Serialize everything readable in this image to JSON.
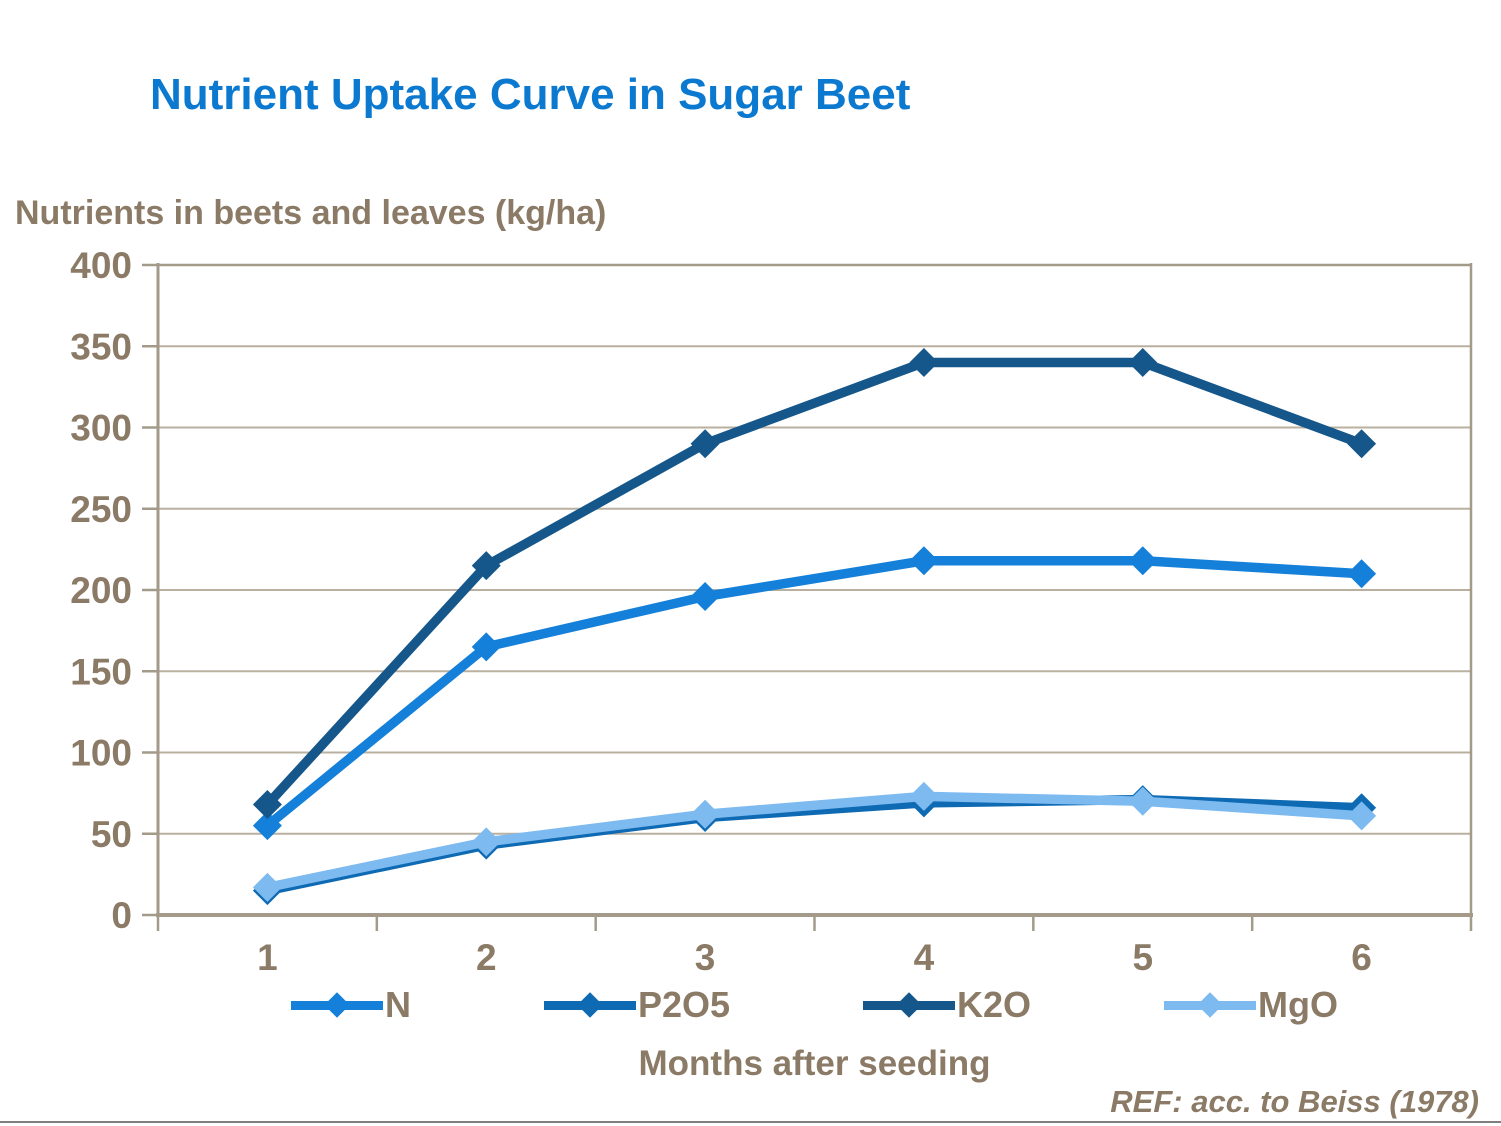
{
  "page": {
    "ref_note": "REF: acc. to Beiss (1978)",
    "colors": {
      "title": "#0B79CF",
      "text": "#8A7A66",
      "axis_frame": "#A39A8A",
      "gridline": "#BAB0A0",
      "divider": "#7F7F7F",
      "background": "#FFFFFF"
    }
  },
  "chart_data": {
    "type": "line",
    "title": "Nutrient Uptake Curve in Sugar Beet",
    "y_axis_title": "Nutrients in beets and leaves (kg/ha)",
    "x_axis_title": "Months after seeding",
    "x": [
      1,
      2,
      3,
      4,
      5,
      6
    ],
    "x_tick_labels": [
      "1",
      "2",
      "3",
      "4",
      "5",
      "6"
    ],
    "y_ticks": [
      0,
      50,
      100,
      150,
      200,
      250,
      300,
      350,
      400
    ],
    "ylim": [
      0,
      400
    ],
    "grid": "horizontal",
    "legend_position": "bottom",
    "marker": "diamond",
    "series": [
      {
        "name": "N",
        "color": "#1480DA",
        "values": [
          55,
          165,
          196,
          218,
          218,
          210
        ]
      },
      {
        "name": "P2O5",
        "color": "#0F6AB4",
        "values": [
          15,
          43,
          60,
          69,
          71,
          66
        ]
      },
      {
        "name": "K2O",
        "color": "#15578A",
        "values": [
          68,
          215,
          290,
          340,
          340,
          290
        ]
      },
      {
        "name": "MgO",
        "color": "#7CBAF0",
        "values": [
          17,
          45,
          62,
          73,
          70,
          61
        ]
      }
    ]
  }
}
